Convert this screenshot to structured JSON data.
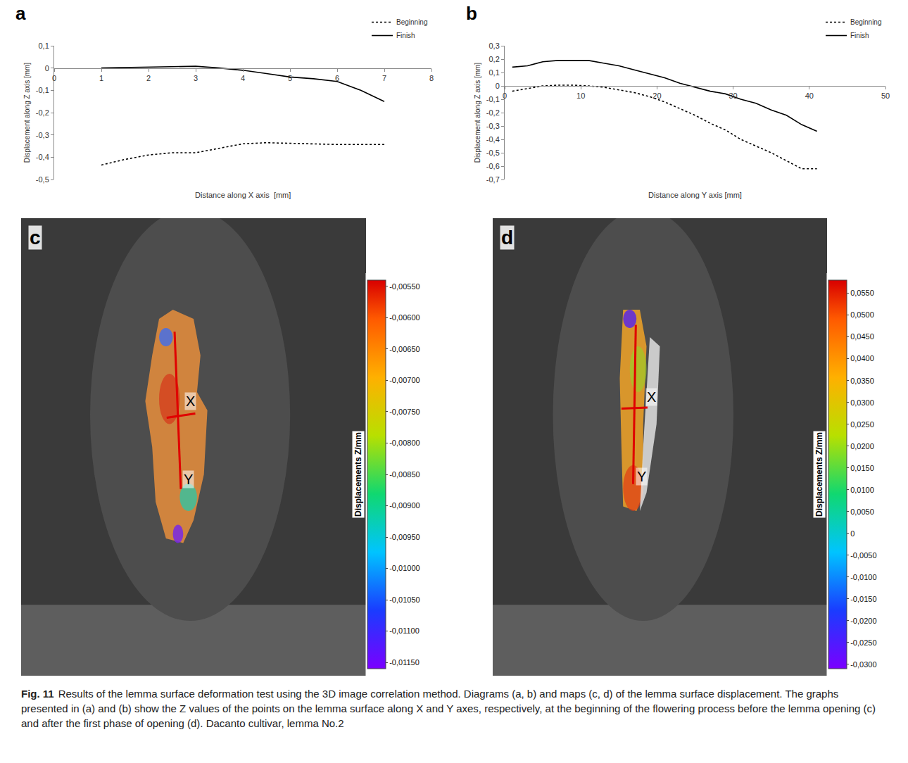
{
  "chart_data": [
    {
      "panel": "a",
      "type": "line",
      "x_label": "Distance along X axis  [mm]",
      "y_label": "Displacement along Z axis [mm]",
      "x": [
        1,
        1.5,
        2,
        2.5,
        3,
        3.5,
        4,
        4.5,
        5,
        5.5,
        6,
        6.5,
        7
      ],
      "series": [
        {
          "name": "Beginning",
          "color": "#000000",
          "line_style": "dotted",
          "values": [
            -0.435,
            -0.41,
            -0.39,
            -0.38,
            -0.38,
            -0.36,
            -0.34,
            -0.335,
            -0.338,
            -0.342,
            -0.343,
            -0.343,
            -0.343
          ]
        },
        {
          "name": "Finish",
          "color": "#000000",
          "line_style": "solid",
          "values": [
            0,
            0.002,
            0.005,
            0.008,
            0.008,
            0.0,
            -0.01,
            -0.025,
            -0.04,
            -0.048,
            -0.06,
            -0.1,
            -0.15
          ]
        }
      ],
      "xlim": [
        0,
        8
      ],
      "xticks": [
        0,
        1,
        2,
        3,
        4,
        5,
        6,
        7,
        8
      ],
      "ylim": [
        -0.5,
        0.1
      ],
      "yticks": [
        {
          "value": -0.5,
          "label": "-0,5"
        },
        {
          "value": -0.4,
          "label": "-0,4"
        },
        {
          "value": -0.3,
          "label": "-0,3"
        },
        {
          "value": -0.2,
          "label": "-0,2"
        },
        {
          "value": -0.1,
          "label": "-0,1"
        },
        0,
        {
          "value": 0.1,
          "label": "0,1"
        }
      ],
      "grid": false,
      "legend": "top right"
    },
    {
      "panel": "b",
      "type": "line",
      "x_label": "Distance along Y axis [mm]",
      "y_label": "Displacement along Z axis [mm]",
      "x": [
        1,
        3,
        5,
        7,
        9,
        11,
        13,
        15,
        17,
        19,
        21,
        23,
        25,
        27,
        29,
        31,
        33,
        35,
        37,
        39,
        41
      ],
      "series": [
        {
          "name": "Beginning",
          "color": "#000000",
          "line_style": "dotted",
          "values": [
            -0.04,
            -0.02,
            0,
            0.005,
            0.005,
            0,
            -0.01,
            -0.03,
            -0.05,
            -0.08,
            -0.12,
            -0.17,
            -0.22,
            -0.28,
            -0.33,
            -0.4,
            -0.45,
            -0.5,
            -0.56,
            -0.62,
            -0.62
          ]
        },
        {
          "name": "Finish",
          "color": "#000000",
          "line_style": "solid",
          "values": [
            0.14,
            0.15,
            0.18,
            0.19,
            0.19,
            0.19,
            0.17,
            0.15,
            0.12,
            0.09,
            0.06,
            0.02,
            -0.01,
            -0.04,
            -0.06,
            -0.1,
            -0.13,
            -0.18,
            -0.22,
            -0.29,
            -0.34
          ]
        }
      ],
      "xlim": [
        0,
        50
      ],
      "xticks": [
        0,
        10,
        20,
        30,
        40,
        50
      ],
      "ylim": [
        -0.7,
        0.3
      ],
      "yticks": [
        {
          "value": -0.7,
          "label": "-0,7"
        },
        {
          "value": -0.6,
          "label": "-0,6"
        },
        {
          "value": -0.5,
          "label": "-0,5"
        },
        {
          "value": -0.4,
          "label": "-0,4"
        },
        {
          "value": -0.3,
          "label": "-0,3"
        },
        {
          "value": -0.2,
          "label": "-0,2"
        },
        {
          "value": -0.1,
          "label": "-0,1"
        },
        0,
        {
          "value": 0.1,
          "label": "0,1"
        },
        {
          "value": 0.2,
          "label": "0,2"
        },
        {
          "value": 0.3,
          "label": "0,3"
        }
      ],
      "grid": false,
      "legend": "top right"
    }
  ],
  "maps": [
    {
      "panel": "c",
      "axis_labels": [
        "X",
        "Y"
      ],
      "colorbar_title": "Displacements Z/mm",
      "colorbar": {
        "range": [
          -0.0116,
          -0.0054
        ],
        "ticks": [
          {
            "value": -0.0055,
            "label": "-0,00550"
          },
          {
            "value": -0.006,
            "label": "-0,00600"
          },
          {
            "value": -0.0065,
            "label": "-0,00650"
          },
          {
            "value": -0.007,
            "label": "-0,00700"
          },
          {
            "value": -0.0075,
            "label": "-0,00750"
          },
          {
            "value": -0.008,
            "label": "-0,00800"
          },
          {
            "value": -0.0085,
            "label": "-0,00850"
          },
          {
            "value": -0.009,
            "label": "-0,00900"
          },
          {
            "value": -0.0095,
            "label": "-0,00950"
          },
          {
            "value": -0.01,
            "label": "-0,01000"
          },
          {
            "value": -0.0105,
            "label": "-0,01050"
          },
          {
            "value": -0.011,
            "label": "-0,01100"
          },
          {
            "value": -0.0115,
            "label": "-0,01150"
          }
        ]
      }
    },
    {
      "panel": "d",
      "axis_labels": [
        "X",
        "Y"
      ],
      "colorbar_title": "Displacements Z/mm",
      "colorbar": {
        "range": [
          -0.031,
          0.058
        ],
        "ticks": [
          {
            "value": 0.055,
            "label": "0,0550"
          },
          {
            "value": 0.05,
            "label": "0,0500"
          },
          {
            "value": 0.045,
            "label": "0,0450"
          },
          {
            "value": 0.04,
            "label": "0,0400"
          },
          {
            "value": 0.035,
            "label": "0,0350"
          },
          {
            "value": 0.03,
            "label": "0,0300"
          },
          {
            "value": 0.025,
            "label": "0,0250"
          },
          {
            "value": 0.02,
            "label": "0,0200"
          },
          {
            "value": 0.015,
            "label": "0,0150"
          },
          {
            "value": 0.01,
            "label": "0,0100"
          },
          {
            "value": 0.005,
            "label": "0,0050"
          },
          0,
          {
            "value": -0.005,
            "label": "-0,0050"
          },
          {
            "value": -0.01,
            "label": "-0,0100"
          },
          {
            "value": -0.015,
            "label": "-0,0150"
          },
          {
            "value": -0.02,
            "label": "-0,0200"
          },
          {
            "value": -0.025,
            "label": "-0,0250"
          },
          {
            "value": -0.03,
            "label": "-0,0300"
          }
        ]
      }
    }
  ],
  "caption": {
    "label": "Fig. 11",
    "text": "Results of the lemma surface deformation test using the 3D image correlation method. Diagrams (a, b) and maps (c, d) of the lemma surface displacement. The graphs presented in (a) and (b) show the Z values of the points on the lemma surface along X and Y axes, respectively, at the beginning of the flowering process before the lemma opening (c) and after the first phase of opening (d). Dacanto cultivar, lemma No.2"
  }
}
